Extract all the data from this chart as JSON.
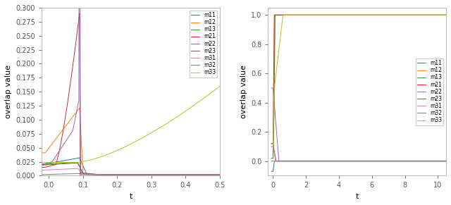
{
  "legend_labels": [
    "m11",
    "m12",
    "m13",
    "m21",
    "m22",
    "m23",
    "m31",
    "m32",
    "m33"
  ],
  "colors": [
    "#1f77b4",
    "#ff7f0e",
    "#2ca02c",
    "#d62728",
    "#9467bd",
    "#8c564b",
    "#e377c2",
    "#7f7f7f",
    "#bcbd22"
  ],
  "left_xlim": [
    -0.02,
    0.5
  ],
  "left_ylim": [
    0.0,
    0.3
  ],
  "left_yticks": [
    0.0,
    0.025,
    0.05,
    0.075,
    0.1,
    0.125,
    0.15,
    0.175,
    0.2,
    0.225,
    0.25,
    0.275,
    0.3
  ],
  "left_xticks": [
    0.0,
    0.1,
    0.2,
    0.3,
    0.4,
    0.5
  ],
  "left_xlabel": "t",
  "left_ylabel": "overlap value",
  "right_xlim": [
    -0.3,
    10.5
  ],
  "right_ylim": [
    -0.1,
    1.05
  ],
  "right_yticks": [
    0.0,
    0.2,
    0.4,
    0.6,
    0.8,
    1.0
  ],
  "right_xticks": [
    0,
    2,
    4,
    6,
    8,
    10
  ],
  "right_xlabel": "t",
  "right_ylabel": "overlap value",
  "vline_x": 0.09,
  "figsize": [
    6.4,
    2.91
  ],
  "dpi": 100,
  "linewidth": 0.7,
  "spine_color": "#aaaaaa",
  "tick_color": "#555555",
  "bg_color": "#ffffff",
  "legend_fontsize": 5.5,
  "axis_fontsize": 7,
  "label_fontsize": 8
}
